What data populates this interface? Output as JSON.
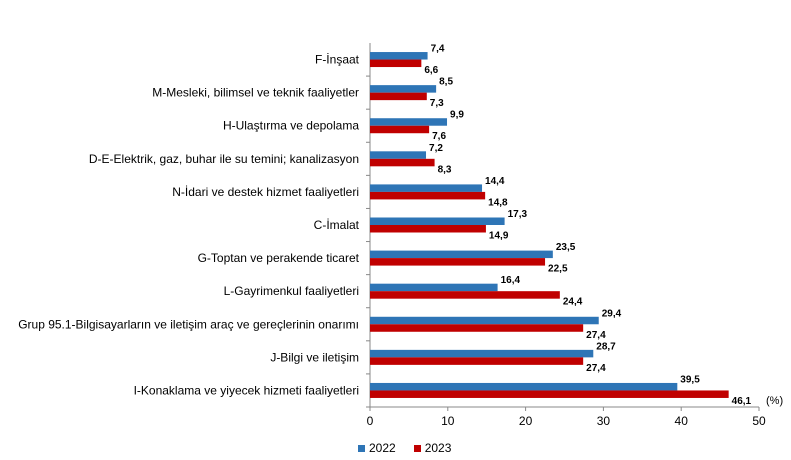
{
  "chart_data": {
    "type": "bar",
    "orientation": "horizontal",
    "unit_label": "(%)",
    "categories": [
      "F-İnşaat",
      "M-Mesleki, bilimsel ve teknik faaliyetler",
      "H-Ulaştırma ve depolama",
      "D-E-Elektrik, gaz, buhar ile su temini; kanalizasyon",
      "N-İdari ve destek hizmet faaliyetleri",
      "C-İmalat",
      "G-Toptan ve perakende ticaret",
      "L-Gayrimenkul faaliyetleri",
      "Grup 95.1-Bilgisayarların ve iletişim araç ve gereçlerinin onarımı",
      "J-Bilgi ve iletişim",
      "I-Konaklama ve yiyecek hizmeti faaliyetleri"
    ],
    "series": [
      {
        "name": "2022",
        "color": "#2E75B6",
        "values": [
          7.4,
          8.5,
          9.9,
          7.2,
          14.4,
          17.3,
          23.5,
          16.4,
          29.4,
          28.7,
          39.5
        ],
        "labels": [
          "7,4",
          "8,5",
          "9,9",
          "7,2",
          "14,4",
          "17,3",
          "23,5",
          "16,4",
          "29,4",
          "28,7",
          "39,5"
        ]
      },
      {
        "name": "2023",
        "color": "#C00000",
        "values": [
          6.6,
          7.3,
          7.6,
          8.3,
          14.8,
          14.9,
          22.5,
          24.4,
          27.4,
          27.4,
          46.1
        ],
        "labels": [
          "6,6",
          "7,3",
          "7,6",
          "8,3",
          "14,8",
          "14,9",
          "22,5",
          "24,4",
          "27,4",
          "27,4",
          "46,1"
        ]
      }
    ],
    "xlim": [
      0,
      50
    ],
    "xticks": [
      0,
      10,
      20,
      30,
      40,
      50
    ],
    "xtick_labels": [
      "0",
      "10",
      "20",
      "30",
      "40",
      "50"
    ],
    "grid": false,
    "legend_position": "bottom"
  }
}
